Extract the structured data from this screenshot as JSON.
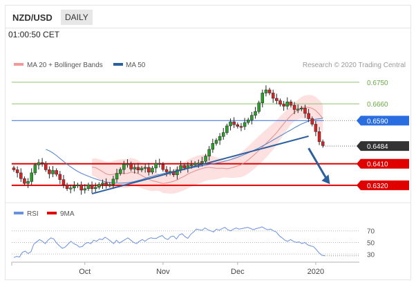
{
  "header": {
    "symbol": "NZD/USD",
    "period": "DAILY",
    "time": "01:00:50 CET"
  },
  "legend": {
    "bands_label": "MA 20 + Bollinger Bands",
    "ma50_label": "MA 50",
    "credit": "Research © 2020 Trading Central"
  },
  "colors": {
    "up_candle": "#2a9d2a",
    "down_candle": "#d62424",
    "bands_fill": "#fcd6d6",
    "ma20": "#e58c8c",
    "ma50": "#4a7fc8",
    "trendline": "#2c5f9e",
    "level_green": "#8cc26c",
    "level_blue": "#4a7fe0",
    "level_red": "#e00000",
    "rsi": "#6a90e0",
    "rsi_ma": "#e00000"
  },
  "chart_data": [
    {
      "type": "candlestick",
      "title": "NZD/USD",
      "ylim": [
        0.6265,
        0.679
      ],
      "xlabels": [
        "Oct",
        "Nov",
        "Dec",
        "2020"
      ],
      "xlabel_index": [
        20,
        42,
        63,
        85
      ],
      "levels": [
        {
          "value": 0.675,
          "label": "0.6750",
          "style": "line-green"
        },
        {
          "value": 0.666,
          "label": "0.6660",
          "style": "line-green"
        },
        {
          "value": 0.659,
          "label": "0.6590",
          "style": "tag-blue"
        },
        {
          "value": 0.6484,
          "label": "0.6484",
          "style": "tag-dark"
        },
        {
          "value": 0.641,
          "label": "0.6410",
          "style": "tag-red"
        },
        {
          "value": 0.632,
          "label": "0.6320",
          "style": "tag-red"
        }
      ],
      "trendline": [
        [
          22,
          0.6285
        ],
        [
          83,
          0.6525
        ]
      ],
      "forecast_arrow": [
        [
          83,
          0.6475
        ],
        [
          89,
          0.6325
        ]
      ],
      "series": [
        {
          "name": "close",
          "values": [
            0.6385,
            0.6372,
            0.6348,
            0.6328,
            0.6336,
            0.6372,
            0.6405,
            0.6415,
            0.6412,
            0.6385,
            0.6368,
            0.6382,
            0.6366,
            0.6344,
            0.6322,
            0.6306,
            0.6309,
            0.6318,
            0.6322,
            0.63,
            0.6306,
            0.6322,
            0.6306,
            0.6312,
            0.6324,
            0.633,
            0.632,
            0.6324,
            0.6346,
            0.637,
            0.6386,
            0.6408,
            0.641,
            0.6388,
            0.6395,
            0.6384,
            0.6392,
            0.6395,
            0.6375,
            0.6392,
            0.6412,
            0.6408,
            0.6386,
            0.6376,
            0.6378,
            0.6364,
            0.6385,
            0.6403,
            0.6392,
            0.6403,
            0.6405,
            0.6412,
            0.6413,
            0.642,
            0.6442,
            0.647,
            0.6495,
            0.6508,
            0.6524,
            0.654,
            0.6568,
            0.6585,
            0.6573,
            0.6566,
            0.6565,
            0.6582,
            0.6593,
            0.6612,
            0.6628,
            0.6664,
            0.6705,
            0.6718,
            0.6705,
            0.6683,
            0.6673,
            0.6658,
            0.665,
            0.6668,
            0.6654,
            0.6636,
            0.6638,
            0.6642,
            0.662,
            0.6598,
            0.6575,
            0.6544,
            0.6502,
            0.6486
          ]
        },
        {
          "name": "ma20",
          "values": [
            0.6396,
            0.6394,
            0.6386,
            0.6377,
            0.6368,
            0.6364,
            0.6366,
            0.6368,
            0.6369,
            0.6369,
            0.637,
            0.6375,
            0.6374,
            0.6369,
            0.6361,
            0.6353,
            0.6345,
            0.6339,
            0.6336,
            0.6332,
            0.6328,
            0.633,
            0.6333,
            0.6337,
            0.6343,
            0.6351,
            0.6358,
            0.6367,
            0.6374,
            0.638,
            0.6386,
            0.639,
            0.6394,
            0.6395,
            0.6393,
            0.6391,
            0.6391,
            0.6391,
            0.6389,
            0.6392,
            0.6396,
            0.6401,
            0.6406,
            0.6415,
            0.6426,
            0.6439,
            0.6452,
            0.6466,
            0.648,
            0.6494,
            0.6509,
            0.6524,
            0.654,
            0.6559,
            0.6577,
            0.6595,
            0.6611,
            0.6624,
            0.6636,
            0.6644,
            0.6647,
            0.6645,
            0.6641,
            0.6632,
            0.6617,
            0.6599
          ]
        },
        {
          "name": "ma50",
          "values": [
            0.647,
            0.6464,
            0.6455,
            0.6444,
            0.6432,
            0.642,
            0.6408,
            0.6397,
            0.6387,
            0.6378,
            0.637,
            0.6364,
            0.6358,
            0.6352,
            0.6347,
            0.6342,
            0.6338,
            0.6334,
            0.6332,
            0.633,
            0.6329,
            0.6329,
            0.633,
            0.6331,
            0.6333,
            0.6336,
            0.634,
            0.6344,
            0.6349,
            0.6354,
            0.6358,
            0.6362,
            0.6365,
            0.6369,
            0.6372,
            0.6375,
            0.6378,
            0.6381,
            0.6384,
            0.6387,
            0.639,
            0.6393,
            0.6396,
            0.6398,
            0.6401,
            0.6404,
            0.6407,
            0.641,
            0.6413,
            0.6416,
            0.6419,
            0.6423,
            0.6427,
            0.6432,
            0.6437,
            0.6443,
            0.6449,
            0.6455,
            0.6462,
            0.6469,
            0.6476,
            0.6484,
            0.6492,
            0.65,
            0.6509,
            0.6517,
            0.6526,
            0.6534,
            0.6543,
            0.6551,
            0.656,
            0.6568,
            0.6576,
            0.6582,
            0.6588,
            0.6592,
            0.6596,
            0.6598,
            0.66
          ]
        }
      ]
    },
    {
      "type": "line",
      "ylim": [
        22,
        84
      ],
      "yticks": [
        70,
        50,
        30
      ],
      "series": [
        {
          "name": "RSI",
          "values": [
            24,
            26,
            25,
            33,
            35,
            31,
            34,
            47,
            51,
            55,
            52,
            48,
            54,
            58,
            56,
            49,
            44,
            40,
            42,
            47,
            52,
            48,
            46,
            42,
            43,
            48,
            50,
            48,
            54,
            52,
            56,
            55,
            59,
            56,
            52,
            48,
            54,
            49,
            52,
            55,
            58,
            54,
            50,
            48,
            52,
            55,
            52,
            56,
            58,
            57,
            57,
            60,
            62,
            57,
            55,
            60,
            61,
            56,
            63,
            65,
            60,
            57,
            64,
            68,
            73,
            72,
            71,
            75,
            72,
            70,
            68,
            73,
            71,
            74,
            76,
            72,
            70,
            73,
            75,
            73,
            74,
            75,
            76,
            74,
            72,
            74,
            75,
            77,
            74,
            72,
            73,
            70,
            68,
            62,
            58,
            54,
            52,
            55,
            52,
            50,
            51,
            48,
            50,
            46,
            44,
            43,
            38,
            32,
            28,
            27
          ]
        },
        {
          "name": "9MA",
          "values": []
        }
      ]
    }
  ],
  "rsi_legend": {
    "rsi_label": "RSI",
    "ma_label": "9MA"
  }
}
